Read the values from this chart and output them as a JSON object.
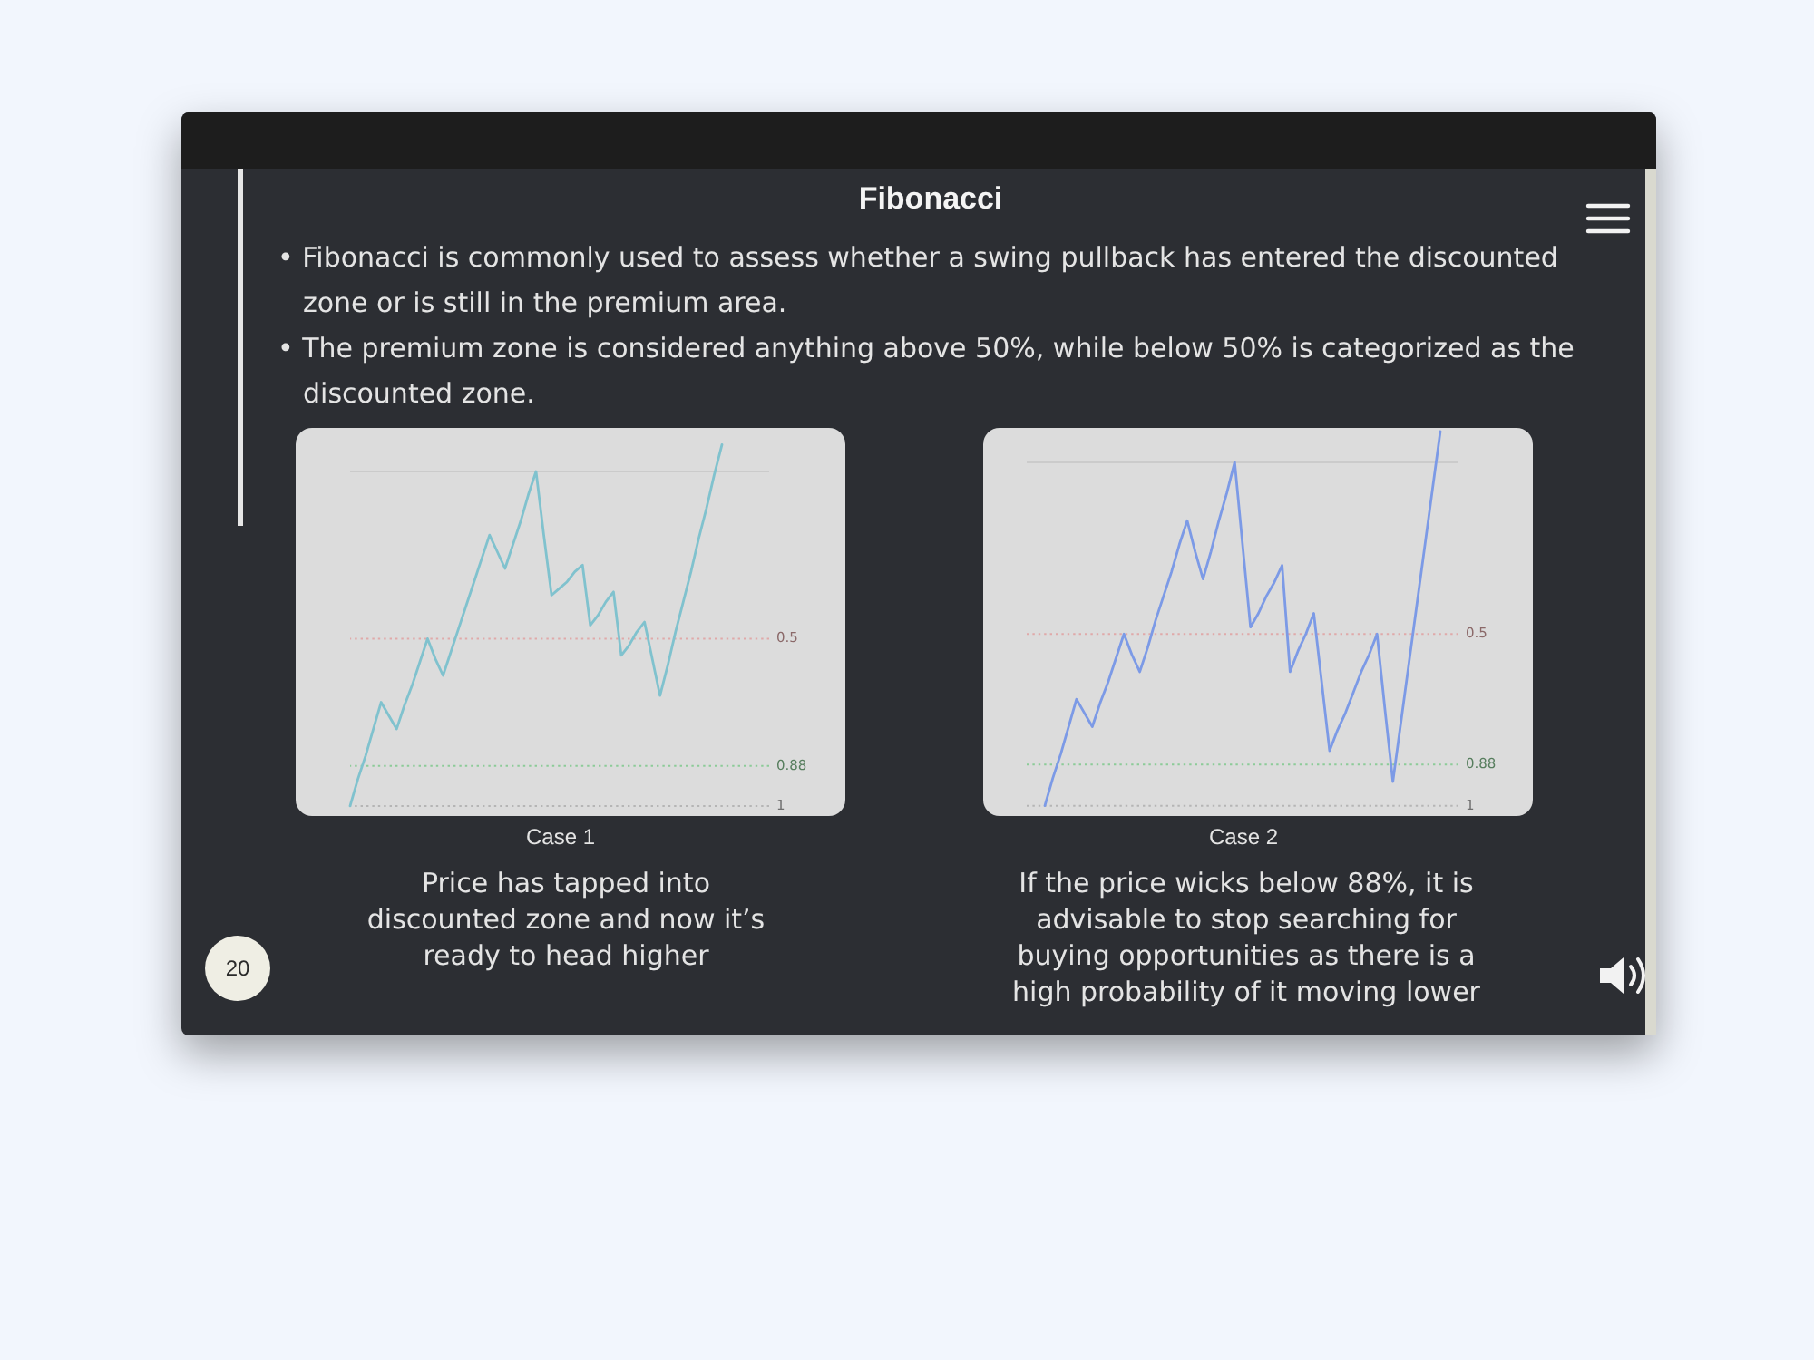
{
  "chart_data": [
    {
      "type": "other",
      "title": "Fibonacci",
      "annotations": [
        "• Fibonacci is commonly used to assess whether a swing pullback has entered the discounted zone or is still in the premium area.",
        "• The premium zone is considered anything above 50%, while below 50% is categorized as the discounted zone.",
        "20"
      ]
    },
    {
      "type": "line",
      "xlabel": "Case 1",
      "annotations": [
        "Price has tapped into discounted zone and now it’s ready to head higher"
      ],
      "categories": [
        null,
        null,
        null,
        null,
        null,
        null,
        null,
        null,
        null,
        null,
        null,
        null,
        null,
        null,
        null,
        null,
        null,
        null,
        null,
        null,
        null,
        null,
        null,
        null,
        null,
        null,
        null,
        null,
        null,
        null,
        null,
        null,
        null,
        null,
        null,
        null,
        null,
        null,
        null,
        null,
        null,
        null,
        null,
        null,
        null,
        null,
        null,
        null,
        null
      ],
      "series": [
        {
          "color": "#80c2ce",
          "values": [
            1.0,
            0.92,
            0.85,
            0.77,
            0.69,
            0.73,
            0.77,
            0.7,
            0.64,
            0.57,
            0.5,
            0.56,
            0.61,
            0.54,
            0.47,
            0.4,
            0.33,
            0.26,
            0.19,
            0.24,
            0.29,
            0.22,
            0.15,
            0.07,
            0.0,
            0.19,
            0.37,
            0.35,
            0.33,
            0.3,
            0.28,
            0.46,
            0.43,
            0.39,
            0.36,
            0.55,
            0.52,
            0.48,
            0.45,
            0.56,
            0.67,
            0.58,
            0.48,
            0.39,
            0.3,
            0.2,
            0.11,
            0.01,
            -0.08
          ]
        }
      ],
      "ylim": [
        1.03,
        -0.13
      ],
      "ref_lines": [
        {
          "axis": "y",
          "value": 0,
          "label": null,
          "color": "#cbcbcb",
          "line_style": "solid"
        },
        {
          "axis": "y",
          "value": 0.5,
          "label": "0.5",
          "color": "#e0a9a9",
          "line_style": "dotted"
        },
        {
          "axis": "y",
          "value": 0.88,
          "label": "0.88",
          "color": "#8ccb98",
          "line_style": "dotted"
        },
        {
          "axis": "y",
          "value": 1,
          "label": "1",
          "color": "#b5b5b5",
          "line_style": "dotted"
        }
      ],
      "tick_labels": false
    },
    {
      "type": "line",
      "xlabel": "Case 2",
      "annotations": [
        "If the price wicks below 88%, it is advisable to stop searching for buying opportunities as there is a high probability of it moving lower"
      ],
      "categories": [
        null,
        null,
        null,
        null,
        null,
        null,
        null,
        null,
        null,
        null,
        null,
        null,
        null,
        null,
        null,
        null,
        null,
        null,
        null,
        null,
        null,
        null,
        null,
        null,
        null,
        null,
        null,
        null,
        null,
        null,
        null,
        null,
        null,
        null,
        null,
        null,
        null,
        null,
        null,
        null,
        null,
        null,
        null,
        null,
        null,
        null,
        null,
        null,
        null,
        null,
        null
      ],
      "series": [
        {
          "color": "#7c9ae6",
          "values": [
            1.0,
            0.92,
            0.85,
            0.77,
            0.69,
            0.73,
            0.77,
            0.7,
            0.64,
            0.57,
            0.5,
            0.56,
            0.61,
            0.54,
            0.46,
            0.39,
            0.32,
            0.24,
            0.17,
            0.26,
            0.34,
            0.26,
            0.17,
            0.09,
            0.0,
            0.24,
            0.48,
            0.44,
            0.39,
            0.35,
            0.3,
            0.61,
            0.55,
            0.5,
            0.44,
            0.64,
            0.84,
            0.78,
            0.73,
            0.67,
            0.61,
            0.56,
            0.5,
            0.72,
            0.93,
            0.76,
            0.59,
            0.42,
            0.25,
            0.08,
            -0.09
          ]
        }
      ],
      "ylim": [
        1.03,
        -0.1
      ],
      "ref_lines": [
        {
          "axis": "y",
          "value": 0,
          "label": null,
          "color": "#cbcbcb",
          "line_style": "solid"
        },
        {
          "axis": "y",
          "value": 0.5,
          "label": "0.5",
          "color": "#e0a9a9",
          "line_style": "dotted"
        },
        {
          "axis": "y",
          "value": 0.88,
          "label": "0.88",
          "color": "#8ccb98",
          "line_style": "dotted"
        },
        {
          "axis": "y",
          "value": 1,
          "label": "1",
          "color": "#b5b5b5",
          "line_style": "dotted"
        }
      ],
      "tick_labels": false
    }
  ]
}
